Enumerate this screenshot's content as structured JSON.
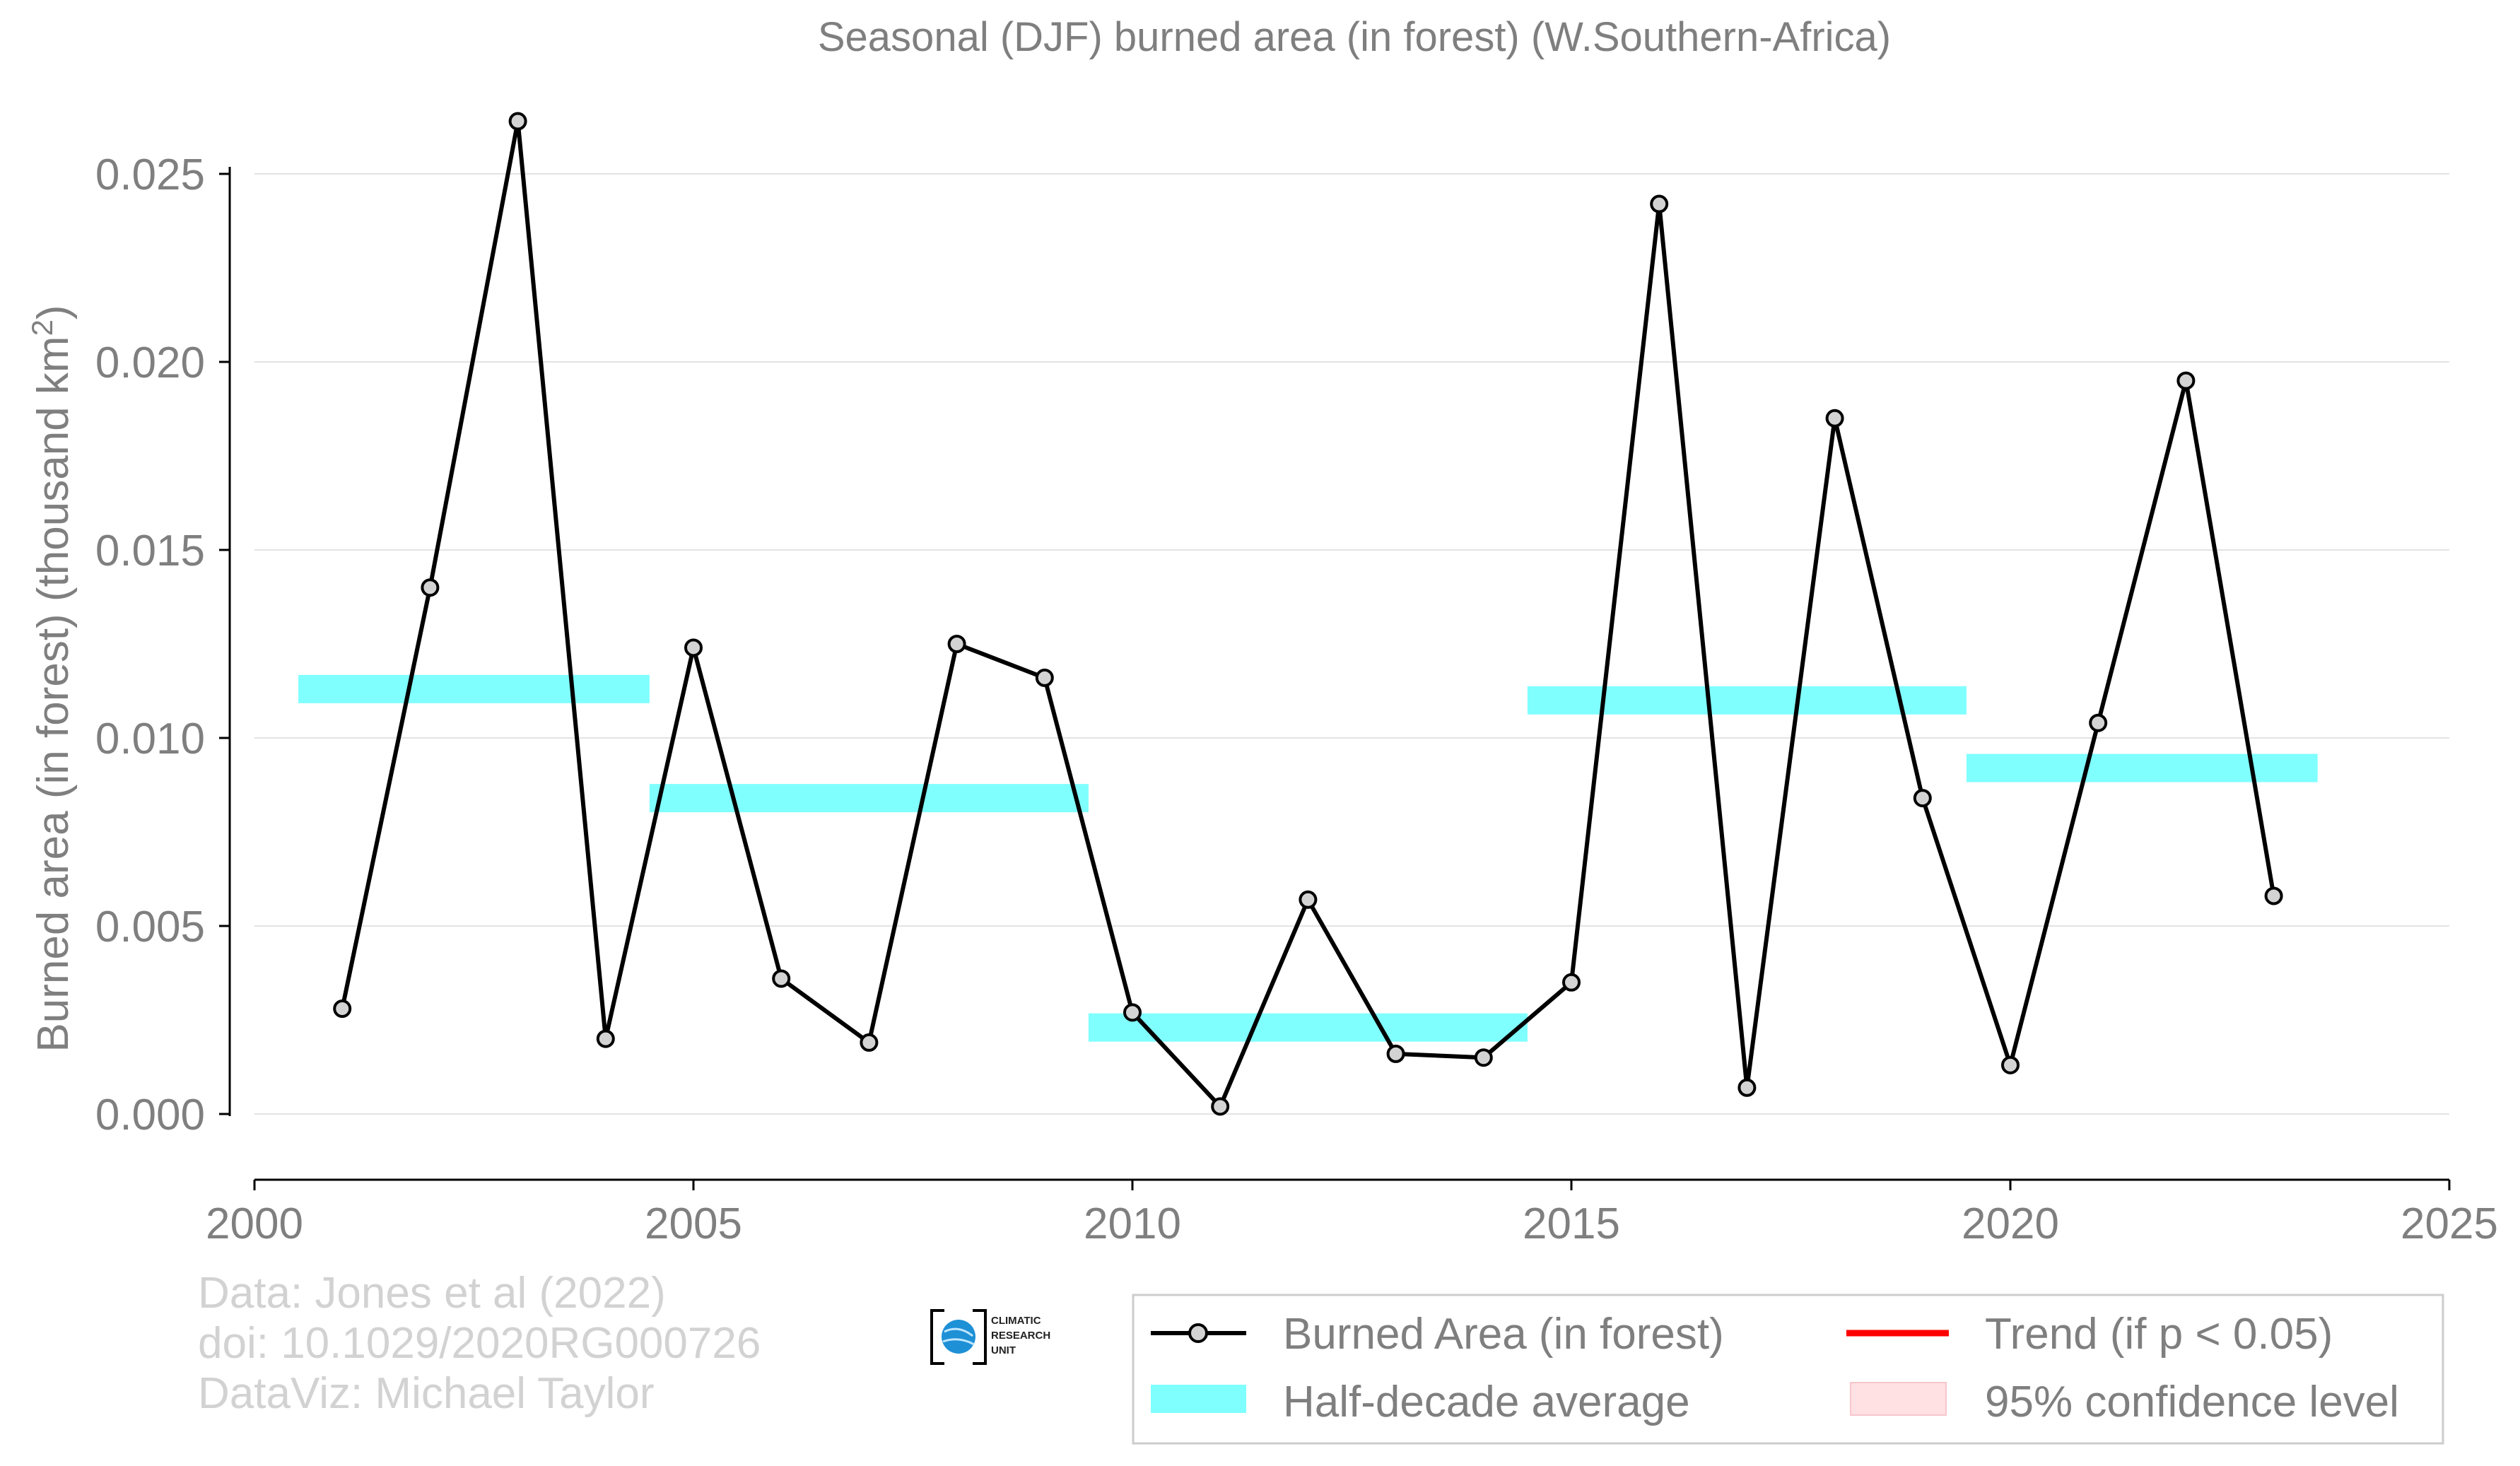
{
  "chart_data": {
    "type": "line",
    "title": "Seasonal (DJF) burned area (in forest) (W.Southern-Africa)",
    "xlabel": "",
    "ylabel": "Burned area (in forest) (thousand km",
    "ylabel_sup": "2",
    "ylabel_close": ")",
    "xlim": [
      2000,
      2025
    ],
    "ylim": [
      -0.0018,
      0.0272
    ],
    "xticks": [
      2000,
      2005,
      2010,
      2015,
      2020,
      2025
    ],
    "yticks": [
      0.0,
      0.005,
      0.01,
      0.015,
      0.02,
      0.025
    ],
    "ytick_labels": [
      "0.000",
      "0.005",
      "0.010",
      "0.015",
      "0.020",
      "0.025"
    ],
    "grid": "horizontal",
    "series": [
      {
        "name": "Burned Area (in forest)",
        "color": "#000000",
        "marker_fill": "#d3d3d3",
        "x": [
          2001,
          2002,
          2003,
          2004,
          2005,
          2006,
          2007,
          2008,
          2009,
          2010,
          2011,
          2012,
          2013,
          2014,
          2015,
          2016,
          2017,
          2018,
          2019,
          2020,
          2021,
          2022,
          2023
        ],
        "y": [
          0.0028,
          0.014,
          0.0264,
          0.002,
          0.0124,
          0.0036,
          0.0019,
          0.0125,
          0.0116,
          0.0027,
          0.0002,
          0.0057,
          0.0016,
          0.0015,
          0.0035,
          0.0242,
          0.0007,
          0.0185,
          0.0084,
          0.0013,
          0.0104,
          0.0195,
          0.0058
        ]
      }
    ],
    "half_decade_average": {
      "name": "Half-decade average",
      "color": "#80ffff",
      "segments": [
        {
          "x0": 2000.5,
          "x1": 2004.5,
          "y": 0.0113
        },
        {
          "x0": 2004.5,
          "x1": 2009.5,
          "y": 0.0084
        },
        {
          "x0": 2009.5,
          "x1": 2014.5,
          "y": 0.0023
        },
        {
          "x0": 2014.5,
          "x1": 2019.5,
          "y": 0.011
        },
        {
          "x0": 2019.5,
          "x1": 2023.5,
          "y": 0.0092
        }
      ]
    },
    "legend": {
      "placement": "bottom-right",
      "entries": [
        {
          "label": "Burned Area (in forest)",
          "kind": "line-marker",
          "color": "#000000"
        },
        {
          "label": "Trend (if p < 0.05)",
          "kind": "line",
          "color": "#ff0000"
        },
        {
          "label": "Half-decade average",
          "kind": "band",
          "color": "#80ffff"
        },
        {
          "label": "95% confidence level",
          "kind": "patch",
          "color": "#ffe0e3"
        }
      ]
    },
    "credits": [
      "Data: Jones et al (2022)",
      "doi: 10.1029/2020RG000726",
      "DataViz: Michael Taylor"
    ],
    "logo": {
      "icon": "globe-icon",
      "lines": [
        "CLIMATIC",
        "RESEARCH",
        "UNIT"
      ]
    }
  }
}
